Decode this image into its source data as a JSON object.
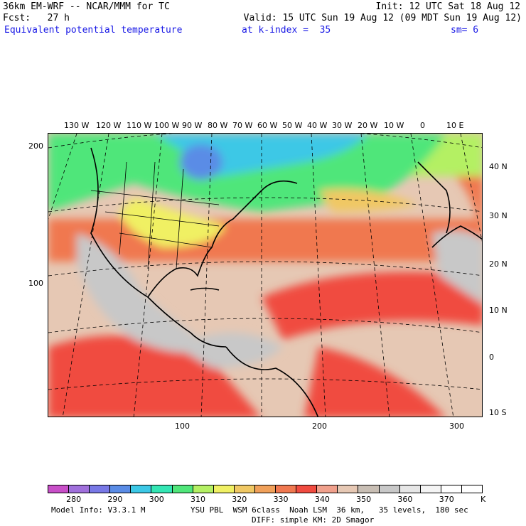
{
  "header": {
    "line1_left": "36km EM-WRF -- NCAR/MMM for TC",
    "line1_right": "Init: 12 UTC Sat 18 Aug 12",
    "line2_left": "Fcst:   27 h",
    "line2_right": "Valid: 15 UTC Sun 19 Aug 12 (09 MDT Sun 19 Aug 12)",
    "field_name": "Equivalent potential temperature",
    "k_index": "at k-index =  35",
    "smoothing": "sm= 6"
  },
  "map": {
    "top_lon_labels": [
      "130 W",
      "120 W",
      "110 W",
      "100 W",
      "90 W",
      "80 W",
      "70 W",
      "60 W",
      "50 W",
      "40 W",
      "30 W",
      "20 W",
      "10 W",
      "0",
      "10 E"
    ],
    "right_lat_labels": [
      "40 N",
      "30 N",
      "20 N",
      "10 N",
      "0",
      "10 S"
    ],
    "left_grid_labels": [
      "200",
      "100"
    ],
    "bottom_grid_labels": [
      "100",
      "200",
      "300"
    ]
  },
  "colorbar": {
    "labels": [
      "280",
      "290",
      "300",
      "310",
      "320",
      "330",
      "340",
      "350",
      "360",
      "370"
    ],
    "unit": "K",
    "colors": [
      "#c84fc8",
      "#a070dc",
      "#7878e6",
      "#5a8ce6",
      "#3cc8e6",
      "#34e6b4",
      "#50e67a",
      "#b4f064",
      "#f0f064",
      "#f0c864",
      "#f0a05a",
      "#f07850",
      "#f04b40",
      "#f0a08c",
      "#e6c8b4",
      "#c8beb4",
      "#c8c8c8",
      "#e6e6e6",
      "#f4f4f4",
      "#ffffff",
      "#ffffff"
    ]
  },
  "footer": {
    "model_info": "Model Info: V3.3.1 M",
    "physics_line1": "YSU PBL  WSM 6class  Noah LSM  36 km,   35 levels,  180 sec",
    "physics_line2": "DIFF: simple KM: 2D Smagor"
  }
}
